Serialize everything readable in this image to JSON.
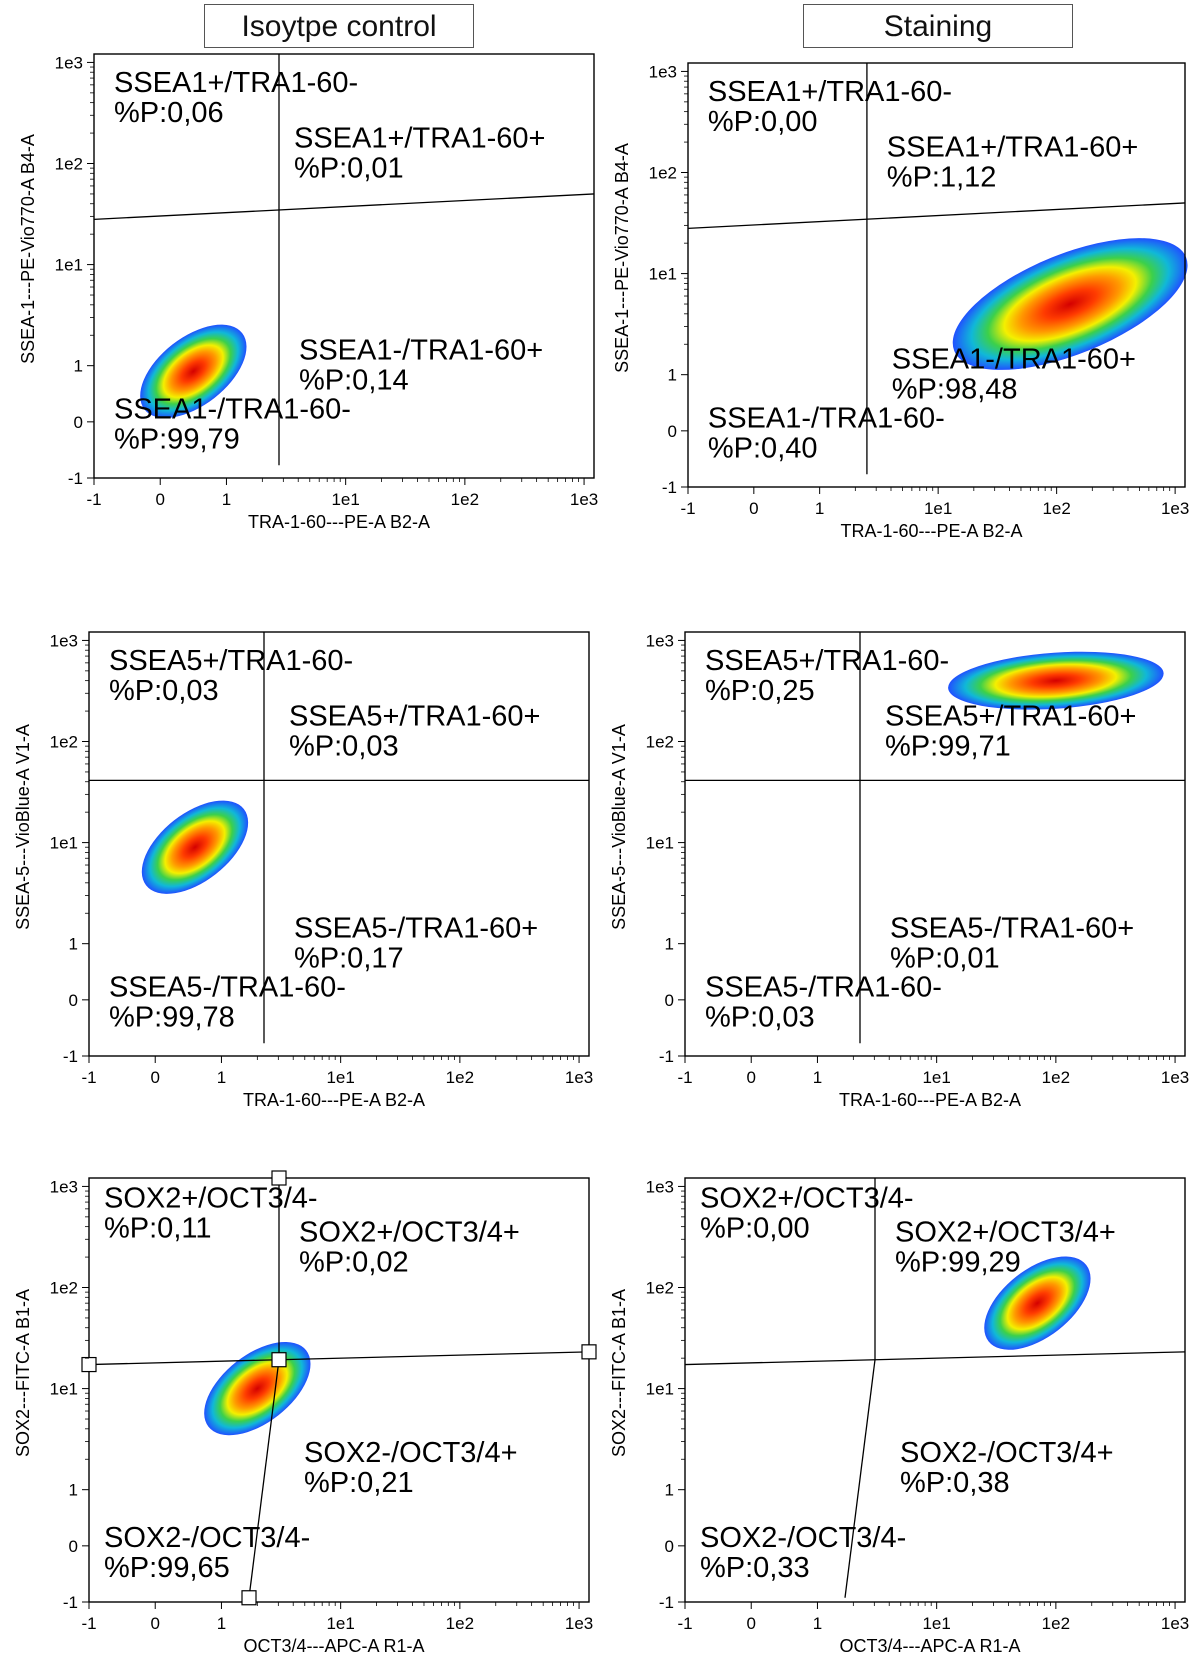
{
  "headers": [
    "Isoytpe control",
    "Staining"
  ],
  "chart_data": [
    {
      "type": "scatter",
      "panel": "isotype-ssea1",
      "xlabel": "TRA-1-60---PE-A B2-A",
      "ylabel": "SSEA-1---PE-Vio770-A B4-A",
      "xlim": [
        -1,
        1000
      ],
      "ylim": [
        -1,
        1000
      ],
      "scale": "biexponential",
      "xticks": [
        "-1",
        "0",
        "1",
        "1e1",
        "1e2",
        "1e3"
      ],
      "yticks": [
        "-1",
        "0",
        "1",
        "1e1",
        "1e2",
        "1e3"
      ],
      "quadrants": [
        {
          "name": "SSEA1+/TRA1-60-",
          "value": "%P:0,06",
          "pos": "top-left"
        },
        {
          "name": "SSEA1+/TRA1-60+",
          "value": "%P:0,01",
          "pos": "top-right"
        },
        {
          "name": "SSEA1-/TRA1-60+",
          "value": "%P:0,14",
          "pos": "bottom-right"
        },
        {
          "name": "SSEA1-/TRA1-60-",
          "value": "%P:99,79",
          "pos": "bottom-left"
        }
      ],
      "population": {
        "center": [
          0.5,
          0.9
        ],
        "shape": "small-diagonal"
      }
    },
    {
      "type": "scatter",
      "panel": "staining-ssea1",
      "xlabel": "TRA-1-60---PE-A B2-A",
      "ylabel": "SSEA-1---PE-Vio770-A B4-A",
      "xlim": [
        -1,
        1000
      ],
      "ylim": [
        -1,
        1000
      ],
      "scale": "biexponential",
      "xticks": [
        "-1",
        "0",
        "1",
        "1e1",
        "1e2",
        "1e3"
      ],
      "yticks": [
        "-1",
        "0",
        "1",
        "1e1",
        "1e2",
        "1e3"
      ],
      "quadrants": [
        {
          "name": "SSEA1+/TRA1-60-",
          "value": "%P:0,00",
          "pos": "top-left"
        },
        {
          "name": "SSEA1+/TRA1-60+",
          "value": "%P:1,12",
          "pos": "top-right"
        },
        {
          "name": "SSEA1-/TRA1-60+",
          "value": "%P:98,48",
          "pos": "bottom-right"
        },
        {
          "name": "SSEA1-/TRA1-60-",
          "value": "%P:0,40",
          "pos": "bottom-left"
        }
      ],
      "population": {
        "center": [
          130,
          5
        ],
        "shape": "large-diagonal"
      }
    },
    {
      "type": "scatter",
      "panel": "isotype-ssea5",
      "xlabel": "TRA-1-60---PE-A B2-A",
      "ylabel": "SSEA-5---VioBlue-A V1-A",
      "xlim": [
        -1,
        1000
      ],
      "ylim": [
        -1,
        1000
      ],
      "scale": "biexponential",
      "xticks": [
        "-1",
        "0",
        "1",
        "1e1",
        "1e2",
        "1e3"
      ],
      "yticks": [
        "-1",
        "0",
        "1",
        "1e1",
        "1e2",
        "1e3"
      ],
      "quadrants": [
        {
          "name": "SSEA5+/TRA1-60-",
          "value": "%P:0,03",
          "pos": "top-left"
        },
        {
          "name": "SSEA5+/TRA1-60+",
          "value": "%P:0,03",
          "pos": "top-right"
        },
        {
          "name": "SSEA5-/TRA1-60+",
          "value": "%P:0,17",
          "pos": "bottom-right"
        },
        {
          "name": "SSEA5-/TRA1-60-",
          "value": "%P:99,78",
          "pos": "bottom-left"
        }
      ],
      "population": {
        "center": [
          0.6,
          9
        ],
        "shape": "small-diagonal"
      }
    },
    {
      "type": "scatter",
      "panel": "staining-ssea5",
      "xlabel": "TRA-1-60---PE-A B2-A",
      "ylabel": "SSEA-5---VioBlue-A V1-A",
      "xlim": [
        -1,
        1000
      ],
      "ylim": [
        -1,
        1000
      ],
      "scale": "biexponential",
      "xticks": [
        "-1",
        "0",
        "1",
        "1e1",
        "1e2",
        "1e3"
      ],
      "yticks": [
        "-1",
        "0",
        "1",
        "1e1",
        "1e2",
        "1e3"
      ],
      "quadrants": [
        {
          "name": "SSEA5+/TRA1-60-",
          "value": "%P:0,25",
          "pos": "top-left"
        },
        {
          "name": "SSEA5+/TRA1-60+",
          "value": "%P:99,71",
          "pos": "top-right"
        },
        {
          "name": "SSEA5-/TRA1-60+",
          "value": "%P:0,01",
          "pos": "bottom-right"
        },
        {
          "name": "SSEA5-/TRA1-60-",
          "value": "%P:0,03",
          "pos": "bottom-left"
        }
      ],
      "population": {
        "center": [
          100,
          400
        ],
        "shape": "wide-flat"
      }
    },
    {
      "type": "scatter",
      "panel": "isotype-sox2",
      "xlabel": "OCT3/4---APC-A R1-A",
      "ylabel": "SOX2---FITC-A B1-A",
      "xlim": [
        -1,
        1000
      ],
      "ylim": [
        -1,
        1000
      ],
      "scale": "biexponential",
      "xticks": [
        "-1",
        "0",
        "1",
        "1e1",
        "1e2",
        "1e3"
      ],
      "yticks": [
        "-1",
        "0",
        "1",
        "1e1",
        "1e2",
        "1e3"
      ],
      "quadrants": [
        {
          "name": "SOX2+/OCT3/4-",
          "value": "%P:0,11",
          "pos": "top-left"
        },
        {
          "name": "SOX2+/OCT3/4+",
          "value": "%P:0,02",
          "pos": "top-right"
        },
        {
          "name": "SOX2-/OCT3/4+",
          "value": "%P:0,21",
          "pos": "bottom-right"
        },
        {
          "name": "SOX2-/OCT3/4-",
          "value": "%P:99,65",
          "pos": "bottom-left"
        }
      ],
      "population": {
        "center": [
          2,
          10
        ],
        "shape": "small-diagonal"
      }
    },
    {
      "type": "scatter",
      "panel": "staining-sox2",
      "xlabel": "OCT3/4---APC-A R1-A",
      "ylabel": "SOX2---FITC-A B1-A",
      "xlim": [
        -1,
        1000
      ],
      "ylim": [
        -1,
        1000
      ],
      "scale": "biexponential",
      "xticks": [
        "-1",
        "0",
        "1",
        "1e1",
        "1e2",
        "1e3"
      ],
      "yticks": [
        "-1",
        "0",
        "1",
        "1e1",
        "1e2",
        "1e3"
      ],
      "quadrants": [
        {
          "name": "SOX2+/OCT3/4-",
          "value": "%P:0,00",
          "pos": "top-left"
        },
        {
          "name": "SOX2+/OCT3/4+",
          "value": "%P:99,29",
          "pos": "top-right"
        },
        {
          "name": "SOX2-/OCT3/4+",
          "value": "%P:0,38",
          "pos": "bottom-right"
        },
        {
          "name": "SOX2-/OCT3/4-",
          "value": "%P:0,33",
          "pos": "bottom-left"
        }
      ],
      "population": {
        "center": [
          70,
          70
        ],
        "shape": "small-diagonal"
      }
    }
  ]
}
